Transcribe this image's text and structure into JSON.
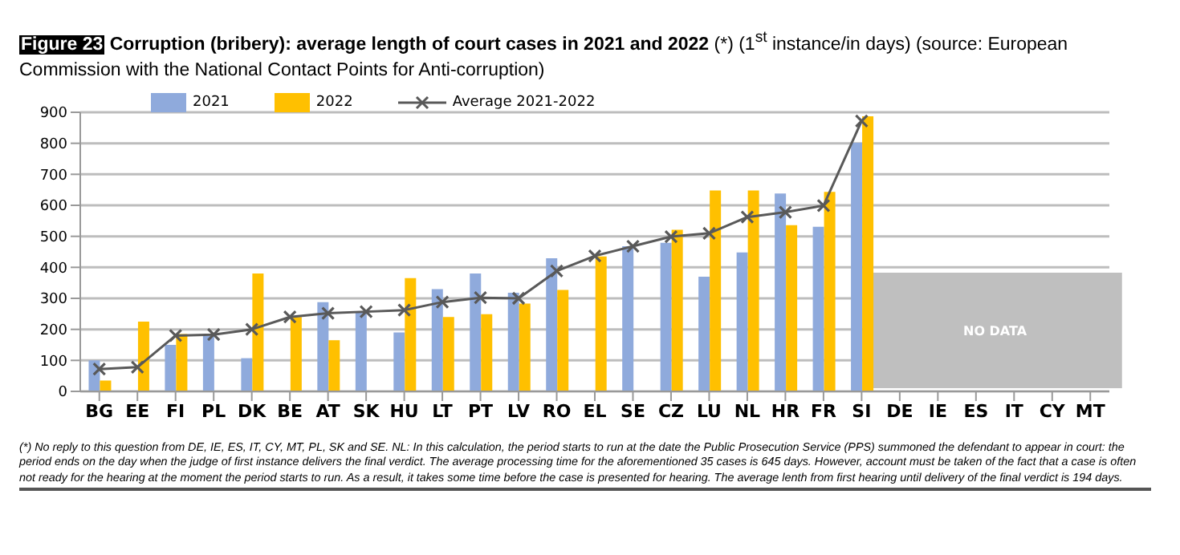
{
  "chart_data": {
    "type": "bar",
    "title": "Corruption (bribery): average length of court cases in 2021 and 2022",
    "subtitle": "(*) (1$^{st}$ instance/in days) (source: European Commission with the National Contact Points for Anti-corruption)",
    "categories": [
      "BG",
      "EE",
      "FI",
      "PL",
      "DK",
      "BE",
      "AT",
      "SK",
      "HU",
      "LT",
      "PT",
      "LV",
      "RO",
      "EL",
      "SE",
      "CZ",
      "LU",
      "NL",
      "HR",
      "FR",
      "SI",
      "DE",
      "IE",
      "ES",
      "IT",
      "CY",
      "MT"
    ],
    "series": [
      {
        "name": "2021",
        "color": "#8faadc",
        "values": [
          100,
          null,
          150,
          180,
          107,
          null,
          288,
          258,
          190,
          330,
          380,
          318,
          429,
          null,
          468,
          479,
          370,
          448,
          638,
          531,
          802,
          null,
          null,
          null,
          null,
          null,
          null
        ]
      },
      {
        "name": "2022",
        "color": "#ffc000",
        "values": [
          35,
          225,
          185,
          null,
          380,
          240,
          165,
          null,
          365,
          240,
          249,
          283,
          327,
          435,
          null,
          521,
          648,
          648,
          536,
          643,
          887,
          null,
          null,
          null,
          null,
          null,
          null
        ]
      },
      {
        "name": "Average 2021-2022",
        "type": "line",
        "color": "#595959",
        "values": [
          72,
          78,
          180,
          183,
          200,
          240,
          252,
          257,
          262,
          288,
          302,
          300,
          388,
          437,
          468,
          499,
          510,
          562,
          578,
          599,
          872,
          null,
          null,
          null,
          null,
          null,
          null
        ]
      }
    ],
    "ylim": [
      0,
      900
    ],
    "yticks": [
      0,
      100,
      200,
      300,
      400,
      500,
      600,
      700,
      800,
      900
    ],
    "grid": "y",
    "legend": "top left",
    "marker": "cross",
    "annotations": [
      "Figure 23",
      "NO DATA",
      "(*) No reply to this question from DE, IE, ES, IT, CY, MT, PL, SK and SE. NL: In this calculation, the period starts to run at the date the Public Prosecution Service (PPS) summoned the defendant to appear in court: the period ends on the day when the judge of first instance delivers the final verdict. The average processing time for the aforementioned 35 cases is 645 days. However, account must be taken of the fact that a case is often not ready for the hearing at the moment the period starts to run. As a result, it takes some time before the case is presented for hearing. The average lenth from first hearing until delivery of the final verdict is 194 days."
    ]
  }
}
